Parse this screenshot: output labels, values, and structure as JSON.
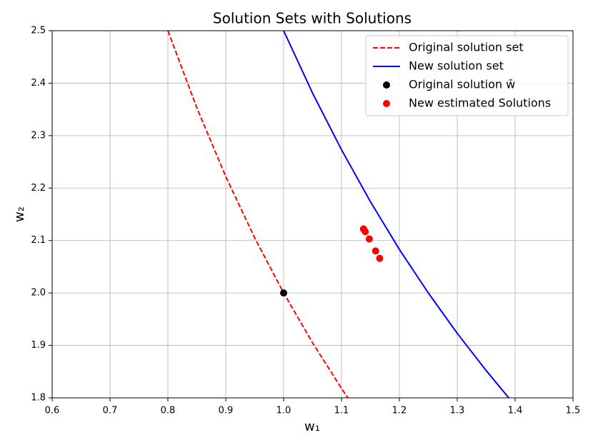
{
  "chart_data": {
    "type": "line",
    "title": "Solution Sets with Solutions",
    "x_label": "w₁",
    "y_label": "w₂",
    "xlim": [
      0.6,
      1.5
    ],
    "ylim": [
      1.8,
      2.5
    ],
    "xticks": [
      0.6,
      0.7,
      0.8,
      0.9,
      {
        "value": 1,
        "label": "1.0"
      },
      1.1,
      1.2,
      1.3,
      1.4,
      1.5
    ],
    "yticks": [
      1.8,
      1.9,
      {
        "value": 2,
        "label": "2.0"
      },
      2.1,
      2.2,
      2.3,
      2.4,
      2.5
    ],
    "grid": true,
    "legend": "upper right",
    "series": [
      {
        "name": "Original solution set",
        "type": "line",
        "style": "dashed",
        "color": "#ff0000",
        "x": [
          0.8,
          0.85,
          0.9,
          0.95,
          1.0,
          1.05,
          1.1,
          1.111
        ],
        "values": [
          2.5,
          2.353,
          2.222,
          2.105,
          2.0,
          1.905,
          1.818,
          1.8
        ]
      },
      {
        "name": "New solution set",
        "type": "line",
        "style": "solid",
        "color": "#0000ff",
        "x": [
          1.0,
          1.05,
          1.1,
          1.15,
          1.2,
          1.25,
          1.3,
          1.35,
          1.389
        ],
        "values": [
          2.5,
          2.381,
          2.273,
          2.174,
          2.083,
          2.0,
          1.923,
          1.852,
          1.8
        ]
      },
      {
        "name": "Original solution w̄",
        "type": "scatter",
        "color": "#000000",
        "x": [
          1.0
        ],
        "values": [
          2.0
        ]
      },
      {
        "name": "New estimated Solutions",
        "type": "scatter",
        "color": "#ff0000",
        "x": [
          1.138,
          1.141,
          1.148,
          1.159,
          1.166
        ],
        "values": [
          2.122,
          2.117,
          2.103,
          2.08,
          2.066
        ]
      }
    ]
  }
}
